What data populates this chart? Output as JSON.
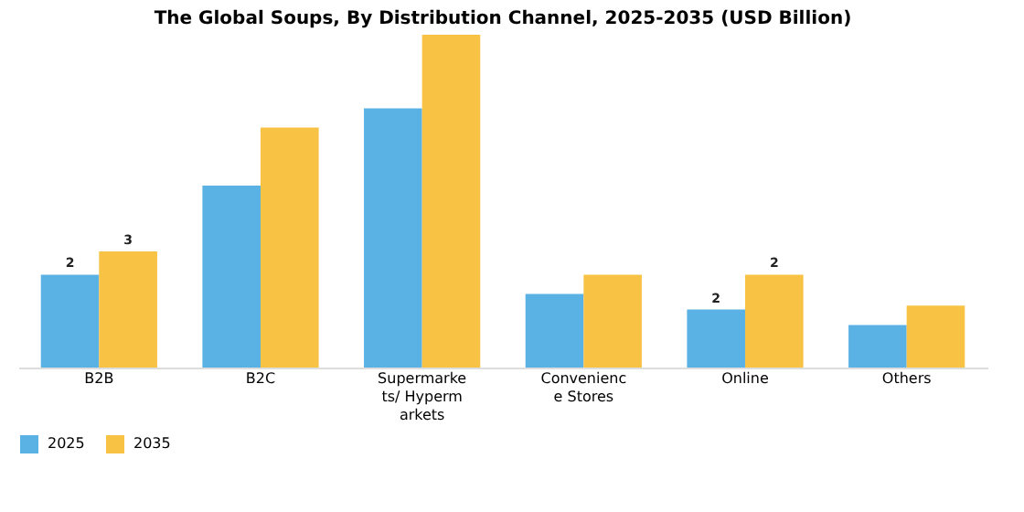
{
  "chart_data": {
    "type": "bar",
    "title": "The Global Soups, By Distribution Channel, 2025-2035 (USD Billion)",
    "categories": [
      "B2B",
      "B2C",
      "Supermarkets/ Hypermarkets",
      "Convenience Stores",
      "Online",
      "Others"
    ],
    "ylim": [
      0,
      8.6
    ],
    "series": [
      {
        "name": "2025",
        "color": "#5ab1e3",
        "values": [
          2.4,
          4.7,
          6.7,
          1.9,
          1.5,
          1.1
        ],
        "value_labels": [
          "2",
          null,
          null,
          null,
          "2",
          null
        ]
      },
      {
        "name": "2035",
        "color": "#f8c244",
        "values": [
          3.0,
          6.2,
          8.6,
          2.4,
          2.4,
          1.6
        ],
        "value_labels": [
          "3",
          null,
          null,
          null,
          "2",
          null
        ]
      }
    ],
    "legend": "bottom",
    "grid": false
  }
}
